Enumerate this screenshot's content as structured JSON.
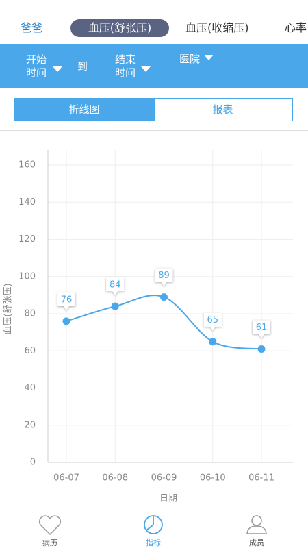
{
  "top_tabs": [
    "爸爸",
    "血压(舒张压)",
    "血压(收缩压)",
    "心率"
  ],
  "filters": {
    "start": "开始时间",
    "to": "到",
    "end": "结束时间",
    "hospital": "医院"
  },
  "view_tabs": [
    "折线图",
    "报表"
  ],
  "chart_data": {
    "type": "line",
    "x_label": "日期",
    "y_label": "血压(舒张压)",
    "categories": [
      "06-07",
      "06-08",
      "06-09",
      "06-10",
      "06-11"
    ],
    "values": [
      76,
      84,
      89,
      65,
      61
    ],
    "color": "#4aa8ea",
    "ylim": [
      0,
      160
    ],
    "yticks": [
      0,
      20,
      40,
      60,
      80,
      100,
      120,
      140,
      160
    ],
    "grid": true
  },
  "nav": [
    "病历",
    "指标",
    "成员"
  ]
}
